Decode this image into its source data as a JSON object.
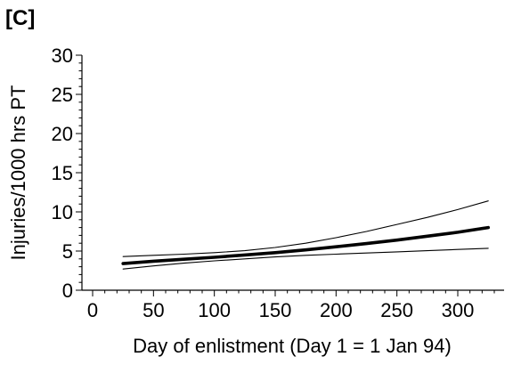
{
  "panel_label": "[C]",
  "chart_data": {
    "type": "line",
    "title": "",
    "xlabel": "Day of enlistment (Day 1 = 1 Jan 94)",
    "ylabel": "Injuries/1000 hrs PT",
    "xlim": [
      0,
      330
    ],
    "ylim": [
      0,
      30
    ],
    "x_ticks": [
      0,
      50,
      100,
      150,
      200,
      250,
      300
    ],
    "y_ticks": [
      0,
      5,
      10,
      15,
      20,
      25,
      30
    ],
    "grid": false,
    "legend": "none",
    "series": [
      {
        "role": "estimate",
        "x": [
          25,
          50,
          75,
          100,
          125,
          150,
          175,
          200,
          225,
          250,
          275,
          300,
          325
        ],
        "values": [
          3.4,
          3.7,
          3.95,
          4.2,
          4.5,
          4.8,
          5.15,
          5.55,
          5.95,
          6.4,
          6.9,
          7.4,
          8.0
        ]
      },
      {
        "role": "upper-bound",
        "x": [
          25,
          50,
          75,
          100,
          125,
          150,
          175,
          200,
          225,
          250,
          275,
          300,
          325
        ],
        "values": [
          4.3,
          4.45,
          4.6,
          4.8,
          5.05,
          5.45,
          6.0,
          6.7,
          7.5,
          8.4,
          9.3,
          10.3,
          11.4
        ]
      },
      {
        "role": "lower-bound",
        "x": [
          25,
          50,
          75,
          100,
          125,
          150,
          175,
          200,
          225,
          250,
          275,
          300,
          325
        ],
        "values": [
          2.7,
          3.1,
          3.45,
          3.75,
          4.0,
          4.25,
          4.45,
          4.6,
          4.75,
          4.9,
          5.05,
          5.2,
          5.35
        ]
      }
    ]
  }
}
